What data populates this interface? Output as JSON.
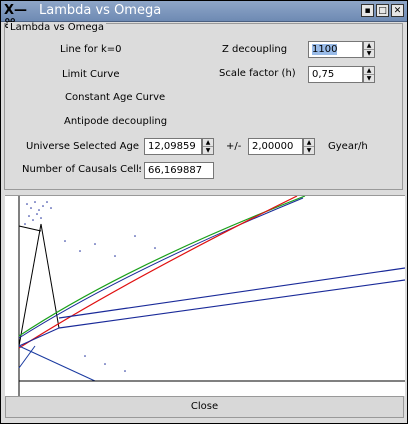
{
  "window": {
    "title": "Lambda vs Omega",
    "menu_glyph": "X—⌘",
    "controls": {
      "minimize": "▪",
      "maximize": "□",
      "close": "✕"
    }
  },
  "panel": {
    "legend": "Lambda vs Omega",
    "labels": {
      "line_k0": "Line for k=0",
      "limit_curve": "Limit Curve",
      "constant_age": "Constant Age Curve",
      "antipode": "Antipode decoupling",
      "z_decoupling": "Z decoupling",
      "scale_factor": "Scale factor (h)",
      "universe_age": "Universe Selected Age",
      "plus_minus": "+/-",
      "units": "Gyear/h",
      "causals": "Number of Causals Cells"
    },
    "values": {
      "z_decoupling": "1100",
      "scale_factor": "0,75",
      "universe_age": "12,09859",
      "age_tolerance": "2,00000",
      "causals": "66,169887"
    }
  },
  "plot": {
    "colors": {
      "limit": "#e01010",
      "k0": "#1aa01a",
      "age_band": "#1a2a99",
      "axis": "#000000",
      "lower": "#1a3aa0"
    }
  },
  "footer": {
    "close_label": "Close"
  }
}
